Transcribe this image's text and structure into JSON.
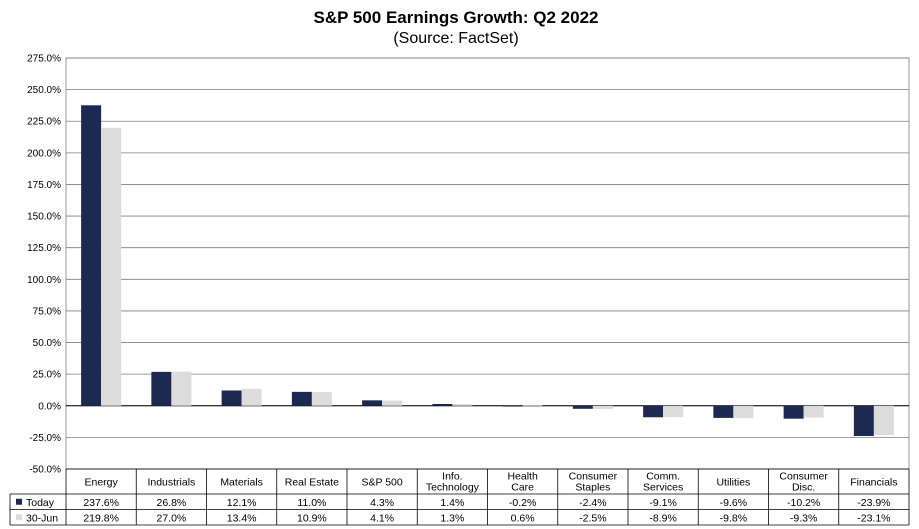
{
  "chart_data": {
    "type": "bar",
    "title": "S&P 500 Earnings Growth: Q2 2022",
    "subtitle": "(Source: FactSet)",
    "xlabel": "",
    "ylabel": "",
    "ylim": [
      -50,
      275
    ],
    "ytick_step": 25,
    "ytick_labels": [
      "275.0%",
      "250.0%",
      "225.0%",
      "200.0%",
      "175.0%",
      "150.0%",
      "125.0%",
      "100.0%",
      "75.0%",
      "50.0%",
      "25.0%",
      "0.0%",
      "-25.0%",
      "-50.0%"
    ],
    "grid": true,
    "legend_placement": "left of data table",
    "categories": [
      [
        "Energy"
      ],
      [
        "Industrials"
      ],
      [
        "Materials"
      ],
      [
        "Real Estate"
      ],
      [
        "S&P 500"
      ],
      [
        "Info.",
        "Technology"
      ],
      [
        "Health",
        "Care"
      ],
      [
        "Consumer",
        "Staples"
      ],
      [
        "Comm.",
        "Services"
      ],
      [
        "Utilities"
      ],
      [
        "Consumer",
        "Disc."
      ],
      [
        "Financials"
      ]
    ],
    "series": [
      {
        "name": "Today",
        "color": "#1c2a52",
        "values": [
          237.6,
          26.8,
          12.1,
          11.0,
          4.3,
          1.4,
          -0.2,
          -2.4,
          -9.1,
          -9.6,
          -10.2,
          -23.9
        ],
        "labels": [
          "237.6%",
          "26.8%",
          "12.1%",
          "11.0%",
          "4.3%",
          "1.4%",
          "-0.2%",
          "-2.4%",
          "-9.1%",
          "-9.6%",
          "-10.2%",
          "-23.9%"
        ]
      },
      {
        "name": "30-Jun",
        "color": "#dcdcdc",
        "values": [
          219.8,
          27.0,
          13.4,
          10.9,
          4.1,
          1.3,
          0.6,
          -2.5,
          -8.9,
          -9.8,
          -9.3,
          -23.1
        ],
        "labels": [
          "219.8%",
          "27.0%",
          "13.4%",
          "10.9%",
          "4.1%",
          "1.3%",
          "0.6%",
          "-2.5%",
          "-8.9%",
          "-9.8%",
          "-9.3%",
          "-23.1%"
        ]
      }
    ]
  }
}
